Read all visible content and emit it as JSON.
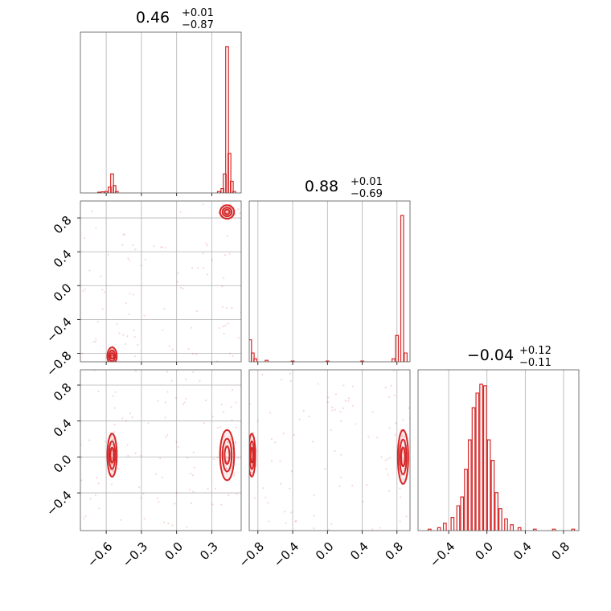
{
  "chart_data": [
    {
      "panel": "hist-0",
      "type": "histogram",
      "title": {
        "value": "0.46",
        "plus": "+0.01",
        "minus": "−0.87"
      },
      "xlim": [
        -0.82,
        0.55
      ],
      "xticks": [
        -0.6,
        -0.3,
        0.0,
        0.3
      ],
      "grid": true,
      "bins": [
        {
          "x": -0.66,
          "h": 0.005
        },
        {
          "x": -0.63,
          "h": 0.008
        },
        {
          "x": -0.6,
          "h": 0.01
        },
        {
          "x": -0.57,
          "h": 0.04
        },
        {
          "x": -0.55,
          "h": 0.13
        },
        {
          "x": -0.53,
          "h": 0.05
        },
        {
          "x": -0.51,
          "h": 0.01
        },
        {
          "x": 0.36,
          "h": 0.01
        },
        {
          "x": 0.39,
          "h": 0.03
        },
        {
          "x": 0.41,
          "h": 0.13
        },
        {
          "x": 0.43,
          "h": 1.0
        },
        {
          "x": 0.45,
          "h": 0.27
        },
        {
          "x": 0.47,
          "h": 0.08
        },
        {
          "x": 0.49,
          "h": 0.01
        }
      ]
    },
    {
      "panel": "hist-1",
      "type": "histogram",
      "title": {
        "value": "0.88",
        "plus": "+0.01",
        "minus": "−0.69"
      },
      "xlim": [
        -0.9,
        0.95
      ],
      "xticks": [
        -0.8,
        -0.4,
        0.0,
        0.4,
        0.8
      ],
      "grid": true,
      "bins": [
        {
          "x": -0.89,
          "h": 0.15
        },
        {
          "x": -0.86,
          "h": 0.06
        },
        {
          "x": -0.83,
          "h": 0.02
        },
        {
          "x": -0.7,
          "h": 0.01
        },
        {
          "x": -0.4,
          "h": 0.005
        },
        {
          "x": 0.0,
          "h": 0.005
        },
        {
          "x": 0.4,
          "h": 0.005
        },
        {
          "x": 0.76,
          "h": 0.02
        },
        {
          "x": 0.8,
          "h": 0.18
        },
        {
          "x": 0.86,
          "h": 1.0
        },
        {
          "x": 0.9,
          "h": 0.06
        }
      ]
    },
    {
      "panel": "hist-2",
      "type": "histogram",
      "title": {
        "value": "−0.04",
        "plus": "+0.12",
        "minus": "−0.11"
      },
      "xlim": [
        -0.72,
        0.96
      ],
      "xticks": [
        -0.4,
        0.0,
        0.4,
        0.8
      ],
      "grid": true,
      "bins": [
        {
          "x": -0.6,
          "h": 0.01
        },
        {
          "x": -0.5,
          "h": 0.02
        },
        {
          "x": -0.44,
          "h": 0.05
        },
        {
          "x": -0.36,
          "h": 0.09
        },
        {
          "x": -0.3,
          "h": 0.17
        },
        {
          "x": -0.26,
          "h": 0.23
        },
        {
          "x": -0.22,
          "h": 0.42
        },
        {
          "x": -0.18,
          "h": 0.62
        },
        {
          "x": -0.14,
          "h": 0.84
        },
        {
          "x": -0.1,
          "h": 0.94
        },
        {
          "x": -0.06,
          "h": 1.0
        },
        {
          "x": -0.02,
          "h": 0.99
        },
        {
          "x": 0.02,
          "h": 0.62
        },
        {
          "x": 0.06,
          "h": 0.48
        },
        {
          "x": 0.1,
          "h": 0.26
        },
        {
          "x": 0.14,
          "h": 0.15
        },
        {
          "x": 0.2,
          "h": 0.08
        },
        {
          "x": 0.26,
          "h": 0.04
        },
        {
          "x": 0.34,
          "h": 0.02
        },
        {
          "x": 0.5,
          "h": 0.01
        },
        {
          "x": 0.7,
          "h": 0.01
        },
        {
          "x": 0.9,
          "h": 0.01
        }
      ]
    },
    {
      "panel": "scatter-1-0",
      "type": "scatter-contour",
      "xlim": [
        -0.82,
        0.55
      ],
      "ylim": [
        -0.9,
        1.0
      ],
      "xticks": [
        -0.6,
        -0.3,
        0.0,
        0.3
      ],
      "yticks": [
        -0.8,
        -0.4,
        0.0,
        0.4,
        0.8
      ],
      "grid": true,
      "clusters": [
        {
          "x": 0.43,
          "y": 0.87,
          "sx": 0.03,
          "sy": 0.04
        },
        {
          "x": -0.55,
          "y": -0.83,
          "sx": 0.02,
          "sy": 0.05
        }
      ]
    },
    {
      "panel": "scatter-2-0",
      "type": "scatter-contour",
      "xlim": [
        -0.82,
        0.55
      ],
      "ylim": [
        -0.82,
        0.97
      ],
      "xticks": [
        -0.6,
        -0.3,
        0.0,
        0.3
      ],
      "yticks": [
        -0.4,
        0.0,
        0.4,
        0.8
      ],
      "grid": true,
      "clusters": [
        {
          "x": 0.43,
          "y": 0.02,
          "sx": 0.03,
          "sy": 0.14
        },
        {
          "x": -0.55,
          "y": 0.02,
          "sx": 0.02,
          "sy": 0.12
        }
      ]
    },
    {
      "panel": "scatter-2-1",
      "type": "scatter-contour",
      "xlim": [
        -0.9,
        0.95
      ],
      "ylim": [
        -0.82,
        0.97
      ],
      "xticks": [
        -0.8,
        -0.4,
        0.0,
        0.4,
        0.8
      ],
      "grid": true,
      "clusters": [
        {
          "x": 0.87,
          "y": 0.0,
          "sx": 0.03,
          "sy": 0.15
        },
        {
          "x": -0.87,
          "y": 0.02,
          "sx": 0.02,
          "sy": 0.12
        }
      ]
    }
  ],
  "colors": {
    "series": "#d62728",
    "grid": "#b0b0b0"
  }
}
